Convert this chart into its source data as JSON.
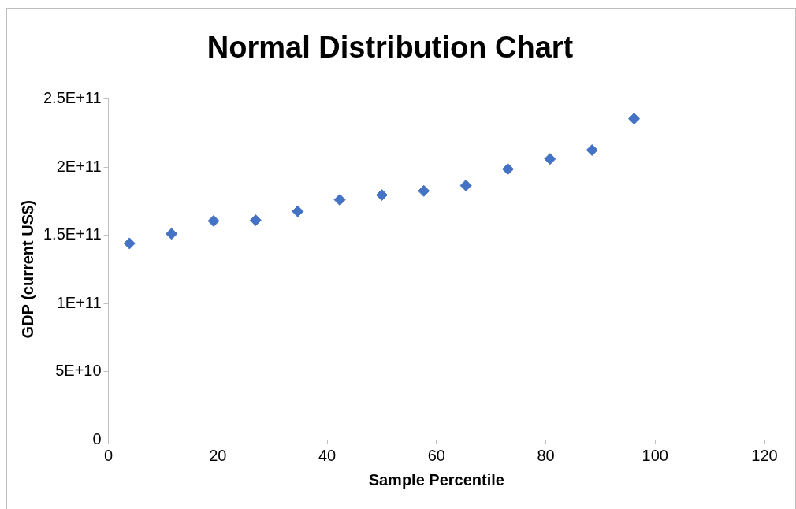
{
  "chart_data": {
    "type": "scatter",
    "title": "Normal Distribution Chart",
    "xlabel": "Sample Percentile",
    "ylabel": "GDP (current US$)",
    "x": [
      3.85,
      11.54,
      19.23,
      26.92,
      34.62,
      42.31,
      50,
      57.69,
      65.38,
      73.08,
      80.77,
      88.46,
      96.15
    ],
    "series": [
      {
        "color": "#4472c4",
        "values": [
          144000000000,
          151000000000,
          160500000000,
          161000000000,
          167500000000,
          176000000000,
          179500000000,
          182500000000,
          186500000000,
          198500000000,
          206000000000,
          212500000000,
          235500000000
        ]
      }
    ],
    "xlim": [
      0,
      120
    ],
    "xticks": [
      0,
      20,
      40,
      60,
      80,
      100,
      120
    ],
    "ylim": [
      0,
      250000000000
    ],
    "yticks": [
      0,
      {
        "value": 50000000000,
        "label": "5E+10"
      },
      {
        "value": 100000000000,
        "label": "1E+11"
      },
      {
        "value": 150000000000,
        "label": "1.5E+11"
      },
      {
        "value": 200000000000,
        "label": "2E+11"
      },
      {
        "value": 250000000000,
        "label": "2.5E+11"
      }
    ],
    "grid": false,
    "legend": false,
    "marker": "diamond"
  }
}
